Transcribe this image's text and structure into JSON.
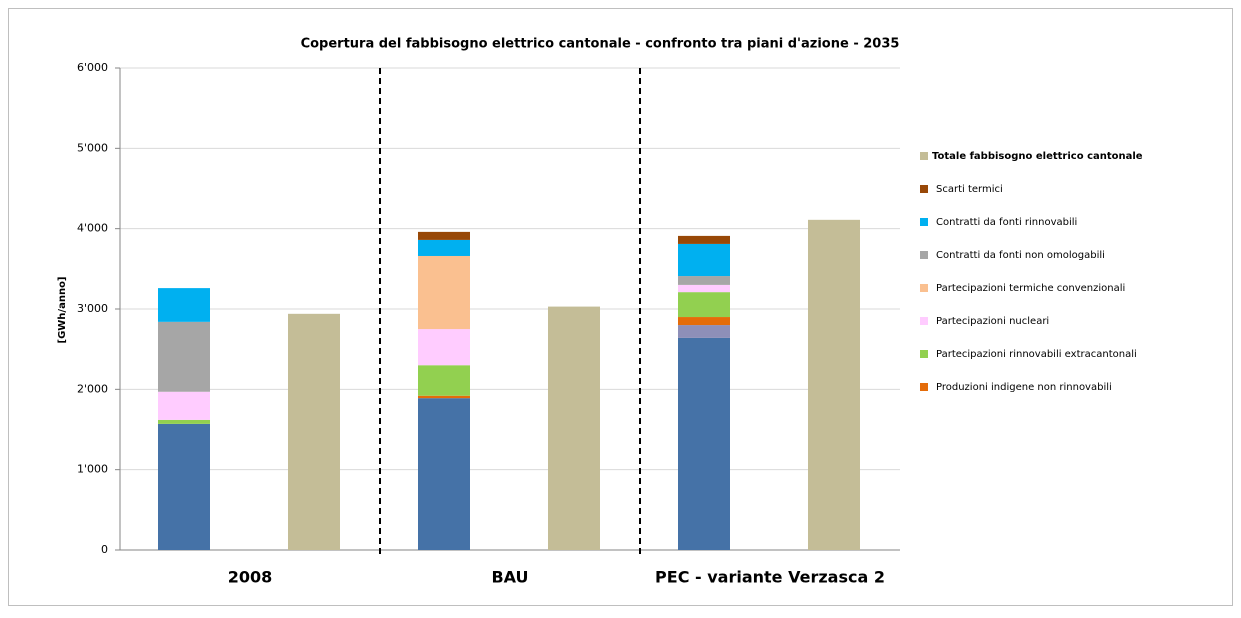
{
  "chart_data": {
    "type": "stacked-bar",
    "title": "Copertura del fabbisogno  elettrico cantonale  - confronto tra piani d'azione - 2035",
    "y_label": "[GWh/anno]",
    "categories": [
      "2008",
      "BAU",
      "PEC - variante Verzasca 2"
    ],
    "series": [
      {
        "color": "#4572a7",
        "values": [
          1570,
          1890,
          2640
        ]
      },
      {
        "color": "#8e8fb8",
        "values": [
          0,
          0,
          160
        ]
      },
      {
        "name": "Produzioni  indigene non  rinnovabili",
        "color": "#e46c0a",
        "values": [
          0,
          30,
          100
        ]
      },
      {
        "name": "Partecipazioni  rinnovabili  extracantonali",
        "color": "#92d050",
        "values": [
          50,
          380,
          310
        ]
      },
      {
        "name": "Partecipazioni  nucleari",
        "color": "#ffccff",
        "values": [
          350,
          450,
          90
        ]
      },
      {
        "name": "Partecipazioni  termiche  convenzionali",
        "color": "#fac090",
        "values": [
          0,
          910,
          0
        ]
      },
      {
        "name": "Contratti  da fonti non  omologabili",
        "color": "#a6a6a6",
        "values": [
          870,
          0,
          110
        ]
      },
      {
        "name": "Contratti  da fonti  rinnovabili",
        "color": "#00b0f0",
        "values": [
          420,
          200,
          400
        ]
      },
      {
        "name": "Scarti termici",
        "color": "#984807",
        "values": [
          0,
          100,
          100
        ]
      }
    ],
    "totals": {
      "name": "Totale  fabbisogno  elettrico  cantonale",
      "color": "#c4bd97",
      "values": [
        2940,
        3030,
        4110
      ]
    },
    "ylim": [
      0,
      6000
    ],
    "yticks": [
      0,
      {
        "value": 1000,
        "label": "1'000"
      },
      {
        "value": 2000,
        "label": "2'000"
      },
      {
        "value": 3000,
        "label": "3'000"
      },
      {
        "value": 4000,
        "label": "4'000"
      },
      {
        "value": 5000,
        "label": "5'000"
      },
      {
        "value": 6000,
        "label": "6'000"
      }
    ],
    "grid": true
  }
}
